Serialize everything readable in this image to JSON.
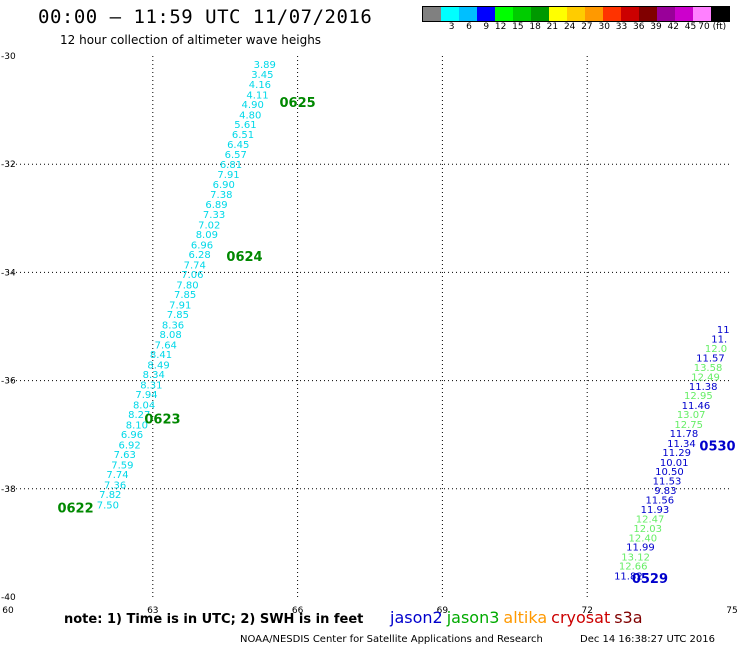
{
  "header": {
    "title": "00:00 – 11:59 UTC 11/07/2016",
    "subtitle": "12 hour collection of altimeter wave heighs"
  },
  "legend": {
    "colors": [
      "#808080",
      "#00ffff",
      "#00bfff",
      "#0000ff",
      "#00ff00",
      "#00cc00",
      "#009900",
      "#ffff00",
      "#ffcc00",
      "#ff9900",
      "#ff3300",
      "#cc0000",
      "#800000",
      "#990099",
      "#cc00cc",
      "#ff80ff",
      "#000000"
    ],
    "labels": [
      "3",
      "6",
      "9",
      "12",
      "15",
      "18",
      "21",
      "24",
      "27",
      "30",
      "33",
      "36",
      "39",
      "42",
      "45",
      "70 (ft)"
    ]
  },
  "footer": {
    "note": "note:  1) Time is in UTC;  2) SWH is in feet",
    "credit": "NOAA/NESDIS Center for Satellite Applications and Research",
    "stamp": "Dec 14 16:38:27 UTC 2016",
    "satellites": [
      {
        "name": "jason2",
        "color": "#0000cc"
      },
      {
        "name": "jason3",
        "color": "#00aa00"
      },
      {
        "name": "altika",
        "color": "#ff9900"
      },
      {
        "name": "cryosat",
        "color": "#cc0000"
      },
      {
        "name": "s3a",
        "color": "#800000"
      }
    ]
  },
  "chart_data": {
    "type": "scatter",
    "xlabel": "",
    "ylabel": "",
    "xlim": [
      60,
      75
    ],
    "ylim": [
      -40,
      -30
    ],
    "x_ticks": [
      60,
      63,
      66,
      69,
      72,
      75
    ],
    "y_ticks": [
      -30,
      -32,
      -34,
      -36,
      -38,
      -40
    ],
    "grid": true,
    "series": [
      {
        "name": "jason3",
        "color": "#00d8e8",
        "points": [
          {
            "x": 65.55,
            "y": -30.15,
            "v": "3.89"
          },
          {
            "x": 65.5,
            "y": -30.33,
            "v": "3.45"
          },
          {
            "x": 65.45,
            "y": -30.52,
            "v": "4.16"
          },
          {
            "x": 65.4,
            "y": -30.71,
            "v": "4.11"
          },
          {
            "x": 65.3,
            "y": -30.89,
            "v": "4.90"
          },
          {
            "x": 65.25,
            "y": -31.08,
            "v": "4.80"
          },
          {
            "x": 65.15,
            "y": -31.26,
            "v": "5.61"
          },
          {
            "x": 65.1,
            "y": -31.44,
            "v": "6.51"
          },
          {
            "x": 65.0,
            "y": -31.63,
            "v": "6.45"
          },
          {
            "x": 64.95,
            "y": -31.81,
            "v": "6.57"
          },
          {
            "x": 64.85,
            "y": -32.0,
            "v": "6.81"
          },
          {
            "x": 64.8,
            "y": -32.18,
            "v": "7.91"
          },
          {
            "x": 64.7,
            "y": -32.37,
            "v": "6.90"
          },
          {
            "x": 64.65,
            "y": -32.55,
            "v": "7.38"
          },
          {
            "x": 64.55,
            "y": -32.74,
            "v": "6.89"
          },
          {
            "x": 64.5,
            "y": -32.92,
            "v": "7.33"
          },
          {
            "x": 64.4,
            "y": -33.11,
            "v": "7.02"
          },
          {
            "x": 64.35,
            "y": -33.29,
            "v": "8.09"
          },
          {
            "x": 64.25,
            "y": -33.48,
            "v": "6.96"
          },
          {
            "x": 64.2,
            "y": -33.66,
            "v": "6.28"
          },
          {
            "x": 64.1,
            "y": -33.85,
            "v": "7.74"
          },
          {
            "x": 64.05,
            "y": -34.03,
            "v": "7.06"
          },
          {
            "x": 63.95,
            "y": -34.22,
            "v": "7.80"
          },
          {
            "x": 63.9,
            "y": -34.4,
            "v": "7.85"
          },
          {
            "x": 63.8,
            "y": -34.59,
            "v": "7.91"
          },
          {
            "x": 63.75,
            "y": -34.77,
            "v": "7.85"
          },
          {
            "x": 63.65,
            "y": -34.96,
            "v": "8.36"
          },
          {
            "x": 63.6,
            "y": -35.14,
            "v": "8.08"
          },
          {
            "x": 63.5,
            "y": -35.33,
            "v": "7.64"
          },
          {
            "x": 63.4,
            "y": -35.51,
            "v": "8.41"
          },
          {
            "x": 63.35,
            "y": -35.7,
            "v": "8.49"
          },
          {
            "x": 63.25,
            "y": -35.88,
            "v": "8.34"
          },
          {
            "x": 63.2,
            "y": -36.07,
            "v": "8.31"
          },
          {
            "x": 63.1,
            "y": -36.25,
            "v": "7.94"
          },
          {
            "x": 63.05,
            "y": -36.44,
            "v": "8.04"
          },
          {
            "x": 62.95,
            "y": -36.62,
            "v": "8.27"
          },
          {
            "x": 62.9,
            "y": -36.81,
            "v": "8.10"
          },
          {
            "x": 62.8,
            "y": -36.99,
            "v": "6.96"
          },
          {
            "x": 62.75,
            "y": -37.18,
            "v": "6.92"
          },
          {
            "x": 62.65,
            "y": -37.36,
            "v": "7.63"
          },
          {
            "x": 62.6,
            "y": -37.55,
            "v": "7.59"
          },
          {
            "x": 62.5,
            "y": -37.73,
            "v": "7.74"
          },
          {
            "x": 62.45,
            "y": -37.92,
            "v": "7.36"
          },
          {
            "x": 62.35,
            "y": -38.1,
            "v": "7.82"
          },
          {
            "x": 62.3,
            "y": -38.29,
            "v": "7.50"
          }
        ]
      },
      {
        "name": "jason2",
        "color": "#0000cc",
        "points": [
          {
            "x": 74.95,
            "y": -35.05,
            "v": "11"
          },
          {
            "x": 74.9,
            "y": -35.22,
            "v": "11."
          },
          {
            "x": 74.9,
            "y": -35.4,
            "v": "12.0",
            "c": "#66ee66"
          },
          {
            "x": 74.85,
            "y": -35.57,
            "v": "11.57"
          },
          {
            "x": 74.8,
            "y": -35.75,
            "v": "13.58",
            "c": "#66ee66"
          },
          {
            "x": 74.75,
            "y": -35.92,
            "v": "12.49",
            "c": "#66ee66"
          },
          {
            "x": 74.7,
            "y": -36.1,
            "v": "11.38"
          },
          {
            "x": 74.6,
            "y": -36.27,
            "v": "12.95",
            "c": "#66ee66"
          },
          {
            "x": 74.55,
            "y": -36.45,
            "v": "11.46"
          },
          {
            "x": 74.45,
            "y": -36.62,
            "v": "13.07",
            "c": "#66ee66"
          },
          {
            "x": 74.4,
            "y": -36.8,
            "v": "12.75",
            "c": "#66ee66"
          },
          {
            "x": 74.3,
            "y": -36.97,
            "v": "11.78"
          },
          {
            "x": 74.25,
            "y": -37.15,
            "v": "11.34"
          },
          {
            "x": 74.15,
            "y": -37.32,
            "v": "11.29"
          },
          {
            "x": 74.1,
            "y": -37.5,
            "v": "10.01"
          },
          {
            "x": 74.0,
            "y": -37.67,
            "v": "10.50"
          },
          {
            "x": 73.95,
            "y": -37.85,
            "v": "11.53"
          },
          {
            "x": 73.85,
            "y": -38.02,
            "v": "9.83"
          },
          {
            "x": 73.8,
            "y": -38.2,
            "v": "11.56"
          },
          {
            "x": 73.7,
            "y": -38.37,
            "v": "11.93"
          },
          {
            "x": 73.6,
            "y": -38.55,
            "v": "12.47",
            "c": "#66ee66"
          },
          {
            "x": 73.55,
            "y": -38.72,
            "v": "12.03",
            "c": "#66ee66"
          },
          {
            "x": 73.45,
            "y": -38.9,
            "v": "12.40",
            "c": "#66ee66"
          },
          {
            "x": 73.4,
            "y": -39.07,
            "v": "11.99"
          },
          {
            "x": 73.3,
            "y": -39.25,
            "v": "13.12",
            "c": "#66ee66"
          },
          {
            "x": 73.25,
            "y": -39.42,
            "v": "12.66",
            "c": "#66ee66"
          },
          {
            "x": 73.15,
            "y": -39.6,
            "v": "11.82"
          }
        ]
      }
    ],
    "annotations": [
      {
        "text": "0625",
        "x": 66.0,
        "y": -30.85,
        "color": "#008800"
      },
      {
        "text": "0624",
        "x": 64.9,
        "y": -33.7,
        "color": "#008800"
      },
      {
        "text": "0623",
        "x": 63.2,
        "y": -36.7,
        "color": "#008800"
      },
      {
        "text": "0622",
        "x": 61.4,
        "y": -38.35,
        "color": "#008800"
      },
      {
        "text": "0530",
        "x": 74.7,
        "y": -37.2,
        "color": "#0000cc"
      },
      {
        "text": "0529",
        "x": 73.3,
        "y": -39.65,
        "color": "#0000cc"
      }
    ]
  }
}
